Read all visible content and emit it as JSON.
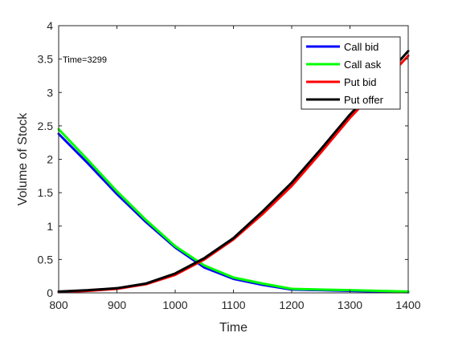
{
  "chart_data": {
    "type": "line",
    "title": "",
    "xlabel": "Time",
    "ylabel": "Volume of Stock",
    "xlim": [
      800,
      1400
    ],
    "ylim": [
      0,
      4
    ],
    "xticks": [
      800,
      900,
      1000,
      1100,
      1200,
      1300,
      1400
    ],
    "yticks": [
      0,
      0.5,
      1,
      1.5,
      2,
      2.5,
      3,
      3.5,
      4
    ],
    "grid": false,
    "legend_position": "top-right",
    "annotation": "Time=3299",
    "series": [
      {
        "name": "Call bid",
        "color": "#0000ff",
        "x": [
          800,
          850,
          900,
          950,
          1000,
          1050,
          1100,
          1150,
          1200,
          1250,
          1300,
          1350,
          1400
        ],
        "y": [
          2.38,
          1.94,
          1.48,
          1.06,
          0.68,
          0.38,
          0.21,
          0.12,
          0.05,
          0.04,
          0.03,
          0.02,
          0.01
        ]
      },
      {
        "name": "Call ask",
        "color": "#00ff00",
        "x": [
          800,
          850,
          900,
          950,
          1000,
          1050,
          1100,
          1150,
          1200,
          1250,
          1300,
          1350,
          1400
        ],
        "y": [
          2.45,
          1.99,
          1.52,
          1.09,
          0.7,
          0.41,
          0.23,
          0.14,
          0.06,
          0.05,
          0.04,
          0.03,
          0.02
        ]
      },
      {
        "name": "Put bid",
        "color": "#ff0000",
        "x": [
          800,
          850,
          900,
          950,
          1000,
          1050,
          1100,
          1150,
          1200,
          1250,
          1300,
          1350,
          1400
        ],
        "y": [
          0.01,
          0.03,
          0.06,
          0.13,
          0.27,
          0.5,
          0.8,
          1.18,
          1.6,
          2.1,
          2.62,
          3.08,
          3.55
        ]
      },
      {
        "name": "Put offer",
        "color": "#000000",
        "x": [
          800,
          850,
          900,
          950,
          1000,
          1050,
          1100,
          1150,
          1200,
          1250,
          1300,
          1350,
          1400
        ],
        "y": [
          0.02,
          0.04,
          0.07,
          0.14,
          0.29,
          0.52,
          0.82,
          1.22,
          1.65,
          2.15,
          2.67,
          3.13,
          3.62
        ]
      }
    ]
  }
}
